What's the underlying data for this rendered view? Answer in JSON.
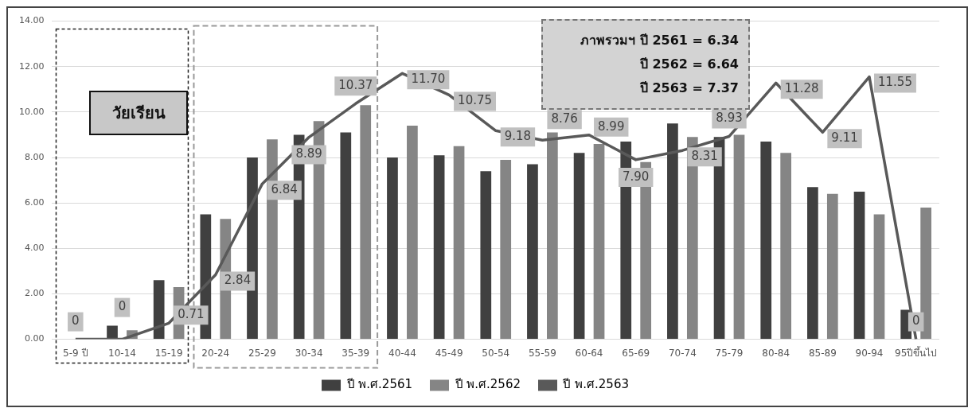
{
  "chart_data": {
    "type": "bar",
    "categories": [
      "5-9 ปี",
      "10-14",
      "15-19",
      "20-24",
      "25-29",
      "30-34",
      "35-39",
      "40-44",
      "45-49",
      "50-54",
      "55-59",
      "60-64",
      "65-69",
      "70-74",
      "75-79",
      "80-84",
      "85-89",
      "90-94",
      "95ปีขึ้นไป"
    ],
    "series": [
      {
        "name": "ปี พ.ศ.2561",
        "color": "#404040",
        "values": [
          0,
          0.6,
          2.6,
          5.5,
          8.0,
          9.0,
          9.1,
          8.0,
          8.1,
          7.4,
          7.7,
          8.2,
          8.7,
          9.5,
          8.9,
          8.7,
          6.7,
          6.5,
          1.3
        ]
      },
      {
        "name": "ปี พ.ศ.2562",
        "color": "#858585",
        "values": [
          0,
          0.4,
          2.3,
          5.3,
          8.8,
          9.6,
          10.3,
          9.4,
          8.5,
          7.9,
          9.1,
          8.6,
          7.8,
          8.9,
          9.0,
          8.2,
          6.4,
          5.5,
          5.8
        ]
      },
      {
        "name": "ปี พ.ศ.2563",
        "type": "line",
        "color": "#595959",
        "values": [
          0,
          0,
          0.71,
          2.84,
          6.84,
          8.89,
          10.37,
          11.7,
          10.75,
          9.18,
          8.76,
          8.99,
          7.9,
          8.31,
          8.93,
          11.28,
          9.11,
          11.55,
          0
        ],
        "value_labels": [
          "0",
          "0",
          "0.71",
          "2.84",
          "6.84",
          "8.89",
          "10.37",
          "11.70",
          "10.75",
          "9.18",
          "8.76",
          "8.99",
          "7.90",
          "8.31",
          "8.93",
          "11.28",
          "9.11",
          "11.55",
          "0"
        ]
      }
    ],
    "ylim": [
      0,
      14
    ],
    "yticks": [
      {
        "value": 0,
        "label": "0.00"
      },
      {
        "value": 2,
        "label": "2.00"
      },
      {
        "value": 4,
        "label": "4.00"
      },
      {
        "value": 6,
        "label": "6.00"
      },
      {
        "value": 8,
        "label": "8.00"
      },
      {
        "value": 10,
        "label": "10.00"
      },
      {
        "value": 12,
        "label": "12.00"
      },
      {
        "value": 14,
        "label": "14.00"
      }
    ],
    "grid": "y",
    "legend": "bottom",
    "marker": "none",
    "line_style": "solid",
    "annotations": [
      "วัยเรียน",
      "ภาพรวมฯ ปี 2561 = 6.34",
      "ปี 2562 = 6.64",
      "ปี 2563 = 7.37"
    ]
  }
}
